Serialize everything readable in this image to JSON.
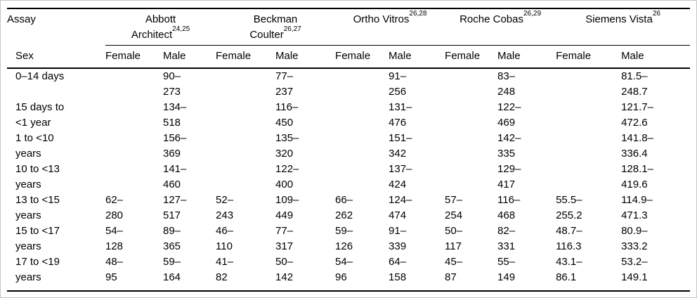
{
  "header": {
    "assay_label": "Assay",
    "sex_label": "Sex",
    "groups": [
      {
        "line1": "Abbott",
        "sup1": "",
        "line2": "Architect",
        "sup2": "24,25"
      },
      {
        "line1": "Beckman",
        "sup1": "",
        "line2": "Coulter",
        "sup2": "26,27"
      },
      {
        "line1": "Ortho Vitros",
        "sup1": "26,28",
        "line2": "",
        "sup2": ""
      },
      {
        "line1": "Roche Cobas",
        "sup1": "26,29",
        "line2": "",
        "sup2": ""
      },
      {
        "line1": "Siemens Vista",
        "sup1": "26",
        "line2": "",
        "sup2": ""
      }
    ],
    "sex_cols": [
      "Female",
      "Male",
      "Female",
      "Male",
      "Female",
      "Male",
      "Female",
      "Male",
      "Female",
      "Male"
    ]
  },
  "table": {
    "rows": [
      {
        "label": [
          "0–14 days",
          ""
        ],
        "cells": [
          [
            "",
            ""
          ],
          [
            "90–",
            "273"
          ],
          [
            "",
            ""
          ],
          [
            "77–",
            "237"
          ],
          [
            "",
            ""
          ],
          [
            "91–",
            "256"
          ],
          [
            "",
            ""
          ],
          [
            "83–",
            "248"
          ],
          [
            "",
            ""
          ],
          [
            "81.5–",
            "248.7"
          ]
        ]
      },
      {
        "label": [
          "15 days to",
          "<1 year"
        ],
        "cells": [
          [
            "",
            ""
          ],
          [
            "134–",
            "518"
          ],
          [
            "",
            ""
          ],
          [
            "116–",
            "450"
          ],
          [
            "",
            ""
          ],
          [
            "131–",
            "476"
          ],
          [
            "",
            ""
          ],
          [
            "122–",
            "469"
          ],
          [
            "",
            ""
          ],
          [
            "121.7–",
            "472.6"
          ]
        ]
      },
      {
        "label": [
          "1 to <10",
          "years"
        ],
        "cells": [
          [
            "",
            ""
          ],
          [
            "156–",
            "369"
          ],
          [
            "",
            ""
          ],
          [
            "135–",
            "320"
          ],
          [
            "",
            ""
          ],
          [
            "151–",
            "342"
          ],
          [
            "",
            ""
          ],
          [
            "142–",
            "335"
          ],
          [
            "",
            ""
          ],
          [
            "141.8–",
            "336.4"
          ]
        ]
      },
      {
        "label": [
          "10 to <13",
          "years"
        ],
        "cells": [
          [
            "",
            ""
          ],
          [
            "141–",
            "460"
          ],
          [
            "",
            ""
          ],
          [
            "122–",
            "400"
          ],
          [
            "",
            ""
          ],
          [
            "137–",
            "424"
          ],
          [
            "",
            ""
          ],
          [
            "129–",
            "417"
          ],
          [
            "",
            ""
          ],
          [
            "128.1–",
            "419.6"
          ]
        ]
      },
      {
        "label": [
          "13 to <15",
          "years"
        ],
        "cells": [
          [
            "62–",
            "280"
          ],
          [
            "127–",
            "517"
          ],
          [
            "52–",
            "243"
          ],
          [
            "109–",
            "449"
          ],
          [
            "66–",
            "262"
          ],
          [
            "124–",
            "474"
          ],
          [
            "57–",
            "254"
          ],
          [
            "116–",
            "468"
          ],
          [
            "55.5–",
            "255.2"
          ],
          [
            "114.9–",
            "471.3"
          ]
        ]
      },
      {
        "label": [
          "15 to <17",
          "years"
        ],
        "cells": [
          [
            "54–",
            "128"
          ],
          [
            "89–",
            "365"
          ],
          [
            "46–",
            "110"
          ],
          [
            "77–",
            "317"
          ],
          [
            "59–",
            "126"
          ],
          [
            "91–",
            "339"
          ],
          [
            "50–",
            "117"
          ],
          [
            "82–",
            "331"
          ],
          [
            "48.7–",
            "116.3"
          ],
          [
            "80.9–",
            "333.2"
          ]
        ]
      },
      {
        "label": [
          "17 to <19",
          "years"
        ],
        "cells": [
          [
            "48–",
            "95"
          ],
          [
            "59–",
            "164"
          ],
          [
            "41–",
            "82"
          ],
          [
            "50–",
            "142"
          ],
          [
            "54–",
            "96"
          ],
          [
            "64–",
            "158"
          ],
          [
            "45–",
            "87"
          ],
          [
            "55–",
            "149"
          ],
          [
            "43.1–",
            "86.1"
          ],
          [
            "53.2–",
            "149.1"
          ]
        ]
      }
    ]
  }
}
